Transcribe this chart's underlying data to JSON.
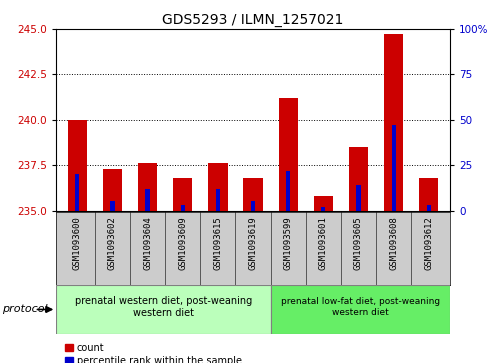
{
  "title": "GDS5293 / ILMN_1257021",
  "samples": [
    "GSM1093600",
    "GSM1093602",
    "GSM1093604",
    "GSM1093609",
    "GSM1093615",
    "GSM1093619",
    "GSM1093599",
    "GSM1093601",
    "GSM1093605",
    "GSM1093608",
    "GSM1093612"
  ],
  "count_values": [
    240.0,
    237.3,
    237.6,
    236.8,
    237.6,
    236.8,
    241.2,
    235.8,
    238.5,
    244.7,
    236.8
  ],
  "percentile_values": [
    20,
    5,
    12,
    3,
    12,
    5,
    22,
    2,
    14,
    47,
    3
  ],
  "ylim_left": [
    235,
    245
  ],
  "ylim_right": [
    0,
    100
  ],
  "yticks_left": [
    235,
    237.5,
    240,
    242.5,
    245
  ],
  "yticks_right": [
    0,
    25,
    50,
    75,
    100
  ],
  "count_color": "#cc0000",
  "percentile_color": "#0000cc",
  "bar_base": 235,
  "group1_label": "prenatal western diet, post-weaning\nwestern diet",
  "group2_label": "prenatal low-fat diet, post-weaning\nwestern diet",
  "group1_n": 6,
  "group2_n": 5,
  "group1_color": "#bbffbb",
  "group2_color": "#66ee66",
  "protocol_label": "protocol",
  "legend_count": "count",
  "legend_percentile": "percentile rank within the sample",
  "bar_width": 0.55,
  "label_bg_color": "#cccccc",
  "plot_bg_color": "#ffffff",
  "label_fontsize": 6.5,
  "title_fontsize": 10,
  "tick_fontsize": 7.5,
  "legend_fontsize": 7,
  "protocol_fontsize": 8
}
